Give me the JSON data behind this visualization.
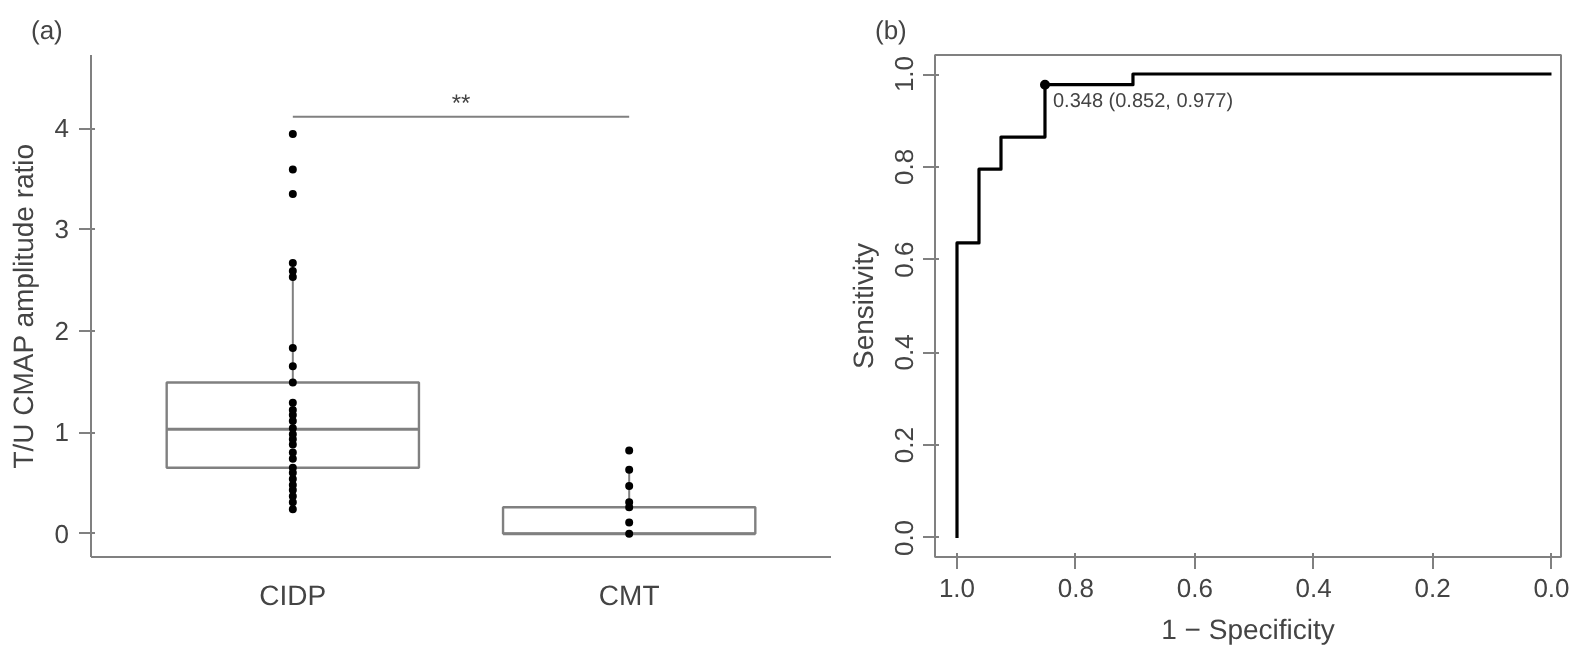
{
  "chart_data": [
    {
      "type": "box",
      "title": "(a)",
      "ylabel": "T/U CMAP amplitude ratio",
      "categories": [
        "CIDP",
        "CMT"
      ],
      "color": "#808080",
      "ylim": [
        -0.23,
        4.72
      ],
      "yticks": [
        0,
        1,
        2,
        3,
        4
      ],
      "grid": false,
      "boxes": [
        {
          "low": 0.24,
          "q1": 0.65,
          "median": 1.03,
          "q3": 1.49,
          "high": 2.67
        },
        {
          "low": 0,
          "q1": 0,
          "median": 0,
          "q3": 0.26,
          "high": 0.63
        }
      ],
      "series": [
        {
          "type": "scatter",
          "color": "#000000",
          "marker": "circle",
          "x": [
            "CIDP",
            "CIDP",
            "CIDP",
            "CIDP",
            "CIDP",
            "CIDP",
            "CIDP",
            "CIDP",
            "CIDP",
            "CIDP",
            "CIDP",
            "CIDP",
            "CIDP",
            "CIDP",
            "CIDP",
            "CIDP",
            "CIDP",
            "CIDP",
            "CIDP",
            "CIDP",
            "CIDP",
            "CIDP",
            "CIDP",
            "CIDP",
            "CIDP",
            "CIDP",
            "CIDP"
          ],
          "values": [
            3.94,
            3.59,
            3.35,
            2.67,
            2.59,
            2.53,
            1.83,
            1.65,
            1.49,
            1.29,
            1.22,
            1.17,
            1.11,
            1.04,
            0.98,
            0.93,
            0.88,
            0.8,
            0.74,
            0.65,
            0.6,
            0.54,
            0.48,
            0.43,
            0.37,
            0.31,
            0.24
          ]
        },
        {
          "type": "scatter",
          "color": "#000000",
          "marker": "circle",
          "x": [
            "CMT",
            "CMT",
            "CMT",
            "CMT",
            "CMT",
            "CMT",
            "CMT"
          ],
          "values": [
            0.82,
            0.63,
            0.47,
            0.31,
            0.26,
            0.11,
            0
          ]
        }
      ],
      "annotations": [
        "**"
      ]
    },
    {
      "type": "line",
      "title": "(b)",
      "xlabel": "1 − Specificity",
      "ylabel": "Sensitivity",
      "xlim": [
        1.037,
        -0.016
      ],
      "ylim": [
        -0.041,
        1.041
      ],
      "grid": false,
      "xticks": [
        {
          "value": 1,
          "label": "1.0"
        },
        {
          "value": 0.8,
          "label": "0.8"
        },
        {
          "value": 0.6,
          "label": "0.6"
        },
        {
          "value": 0.4,
          "label": "0.4"
        },
        {
          "value": 0.2,
          "label": "0.2"
        },
        {
          "value": 0,
          "label": "0.0"
        }
      ],
      "yticks": [
        {
          "value": 0,
          "label": "0.0"
        },
        {
          "value": 0.2,
          "label": "0.2"
        },
        {
          "value": 0.4,
          "label": "0.4"
        },
        {
          "value": 0.6,
          "label": "0.6"
        },
        {
          "value": 0.8,
          "label": "0.8"
        },
        {
          "value": 1,
          "label": "1.0"
        }
      ],
      "series": [
        {
          "type": "line",
          "color": "#000000",
          "x": [
            1,
            1,
            0.963,
            0.963,
            0.926,
            0.926,
            0.852,
            0.852,
            0.704,
            0.704,
            0
          ],
          "values": [
            0,
            0.636,
            0.636,
            0.795,
            0.795,
            0.864,
            0.864,
            0.977,
            0.977,
            1,
            1
          ]
        },
        {
          "type": "scatter",
          "color": "#000000",
          "marker": "circle",
          "x": [
            0.852
          ],
          "values": [
            0.977
          ]
        }
      ],
      "annotations": [
        {
          "text": "0.348 (0.852, 0.977)",
          "x": 0.852,
          "y": 0.977
        }
      ]
    }
  ]
}
